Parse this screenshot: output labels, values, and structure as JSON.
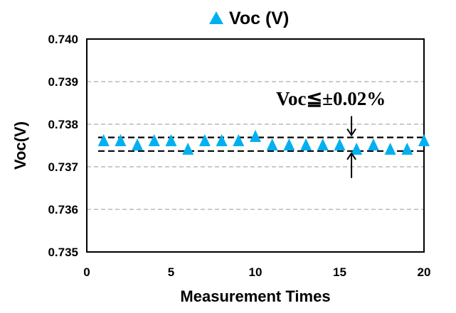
{
  "chart_data": {
    "type": "scatter",
    "title": "Voc (V)",
    "xlabel": "Measurement Times",
    "ylabel": "Voc(V)",
    "xlim": [
      0,
      20
    ],
    "ylim": [
      0.735,
      0.74
    ],
    "xticks": [
      "0",
      "5",
      "10",
      "15",
      "20"
    ],
    "yticks": [
      "0.735",
      "0.736",
      "0.737",
      "0.738",
      "0.739",
      "0.740"
    ],
    "grid": "horizontal dashed",
    "legend": "top",
    "marker": "triangle",
    "color": "#00b0f0",
    "series": [
      {
        "name": "Voc (V)",
        "x": [
          1,
          2,
          3,
          4,
          5,
          6,
          7,
          8,
          9,
          10,
          11,
          12,
          13,
          14,
          15,
          16,
          17,
          18,
          19,
          20
        ],
        "y": [
          0.7376,
          0.7376,
          0.7375,
          0.7376,
          0.7376,
          0.7374,
          0.7376,
          0.7376,
          0.7376,
          0.7377,
          0.7375,
          0.7375,
          0.7375,
          0.7375,
          0.7375,
          0.7374,
          0.7375,
          0.7374,
          0.7374,
          0.7376
        ]
      }
    ],
    "reference_lines": [
      0.73769,
      0.73737
    ],
    "annotation": {
      "text": "Voc≦±0.02%",
      "x": 15.7
    }
  }
}
